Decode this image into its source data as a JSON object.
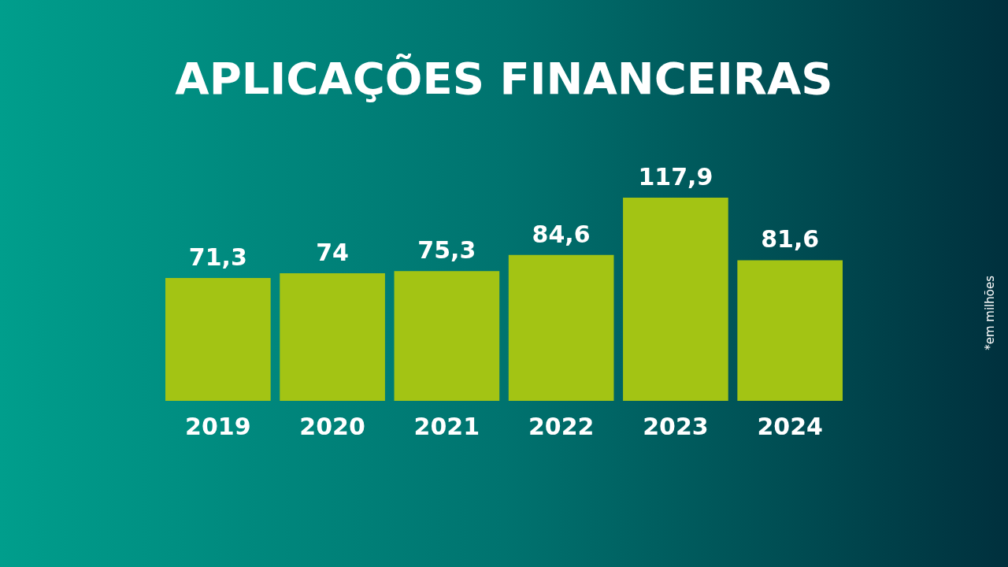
{
  "chart_data": {
    "type": "bar",
    "title": "APLICAÇÕES FINANCEIRAS",
    "categories": [
      "2019",
      "2020",
      "2021",
      "2022",
      "2023",
      "2024"
    ],
    "values": [
      71.3,
      74,
      75.3,
      84.6,
      117.9,
      81.6
    ],
    "value_labels": [
      "71,3",
      "74",
      "75,3",
      "84,6",
      "117,9",
      "81,6"
    ],
    "color": "#a3c414",
    "annotations": [
      "*em milhões"
    ]
  }
}
